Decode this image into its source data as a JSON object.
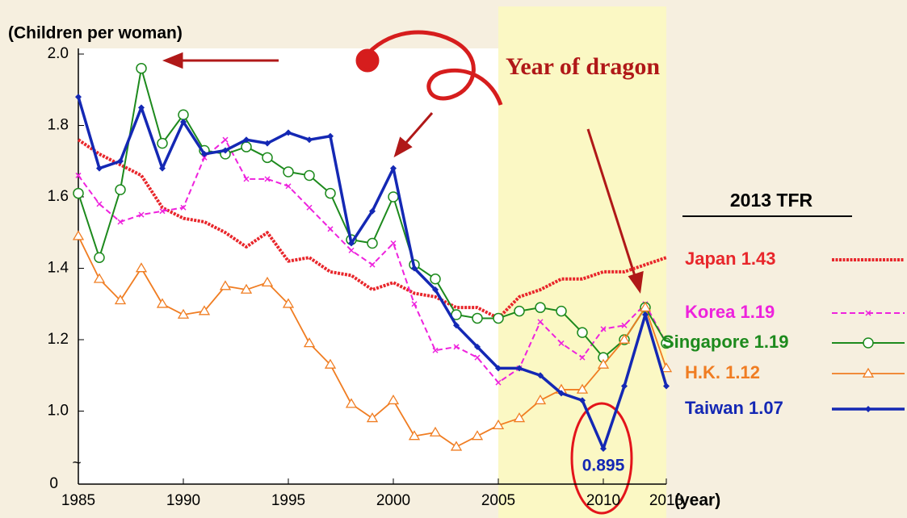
{
  "chart_data": {
    "type": "line",
    "y_label": "(Children per woman)",
    "x_label": "(year)",
    "annotation": "Year of dragon",
    "legend_title": "2013 TFR",
    "y_origin_label": "0",
    "axis_break": "~",
    "highlight": [
      2005,
      2013
    ],
    "x": [
      1985,
      1986,
      1987,
      1988,
      1989,
      1990,
      1991,
      1992,
      1993,
      1994,
      1995,
      1996,
      1997,
      1998,
      1999,
      2000,
      2001,
      2002,
      2003,
      2004,
      2005,
      2006,
      2007,
      2008,
      2009,
      2010,
      2011,
      2012,
      2013
    ],
    "xlim": [
      1985,
      2013
    ],
    "xticks": [
      1985,
      1990,
      1995,
      2000,
      2005,
      2010,
      2013
    ],
    "ylim": [
      0.8,
      2.0
    ],
    "yticks": [
      {
        "value": 1,
        "label": "1.0"
      },
      1.2,
      1.4,
      1.6,
      1.8,
      {
        "value": 2,
        "label": "2.0"
      }
    ],
    "series": [
      {
        "name": "Japan 1.43",
        "color": "#e8262b",
        "values": [
          1.76,
          1.72,
          1.69,
          1.66,
          1.57,
          1.54,
          1.53,
          1.5,
          1.46,
          1.5,
          1.42,
          1.43,
          1.39,
          1.38,
          1.34,
          1.36,
          1.33,
          1.32,
          1.29,
          1.29,
          1.26,
          1.32,
          1.34,
          1.37,
          1.37,
          1.39,
          1.39,
          1.41,
          1.43
        ]
      },
      {
        "name": "Korea 1.19",
        "color": "#ee22dd",
        "values": [
          1.66,
          1.58,
          1.53,
          1.55,
          1.56,
          1.57,
          1.71,
          1.76,
          1.65,
          1.65,
          1.63,
          1.57,
          1.51,
          1.45,
          1.41,
          1.47,
          1.3,
          1.17,
          1.18,
          1.15,
          1.08,
          1.12,
          1.25,
          1.19,
          1.15,
          1.23,
          1.24,
          1.3,
          1.19
        ]
      },
      {
        "name": "Singapore 1.19",
        "color": "#1d8a1d",
        "values": [
          1.61,
          1.43,
          1.62,
          1.96,
          1.75,
          1.83,
          1.73,
          1.72,
          1.74,
          1.71,
          1.67,
          1.66,
          1.61,
          1.48,
          1.47,
          1.6,
          1.41,
          1.37,
          1.27,
          1.26,
          1.26,
          1.28,
          1.29,
          1.28,
          1.22,
          1.15,
          1.2,
          1.29,
          1.19
        ]
      },
      {
        "name": "H.K. 1.12",
        "color": "#f07d22",
        "values": [
          1.49,
          1.37,
          1.31,
          1.4,
          1.3,
          1.27,
          1.28,
          1.35,
          1.34,
          1.36,
          1.3,
          1.19,
          1.13,
          1.02,
          0.98,
          1.03,
          0.93,
          0.94,
          0.9,
          0.93,
          0.96,
          0.98,
          1.03,
          1.06,
          1.06,
          1.13,
          1.2,
          1.29,
          1.12
        ]
      },
      {
        "name": "Taiwan 1.07",
        "color": "#1428b4",
        "values": [
          1.88,
          1.68,
          1.7,
          1.85,
          1.68,
          1.81,
          1.72,
          1.73,
          1.76,
          1.75,
          1.78,
          1.76,
          1.77,
          1.47,
          1.56,
          1.68,
          1.4,
          1.34,
          1.24,
          1.18,
          1.12,
          1.12,
          1.1,
          1.05,
          1.03,
          0.895,
          1.07,
          1.27,
          1.07
        ]
      }
    ]
  }
}
